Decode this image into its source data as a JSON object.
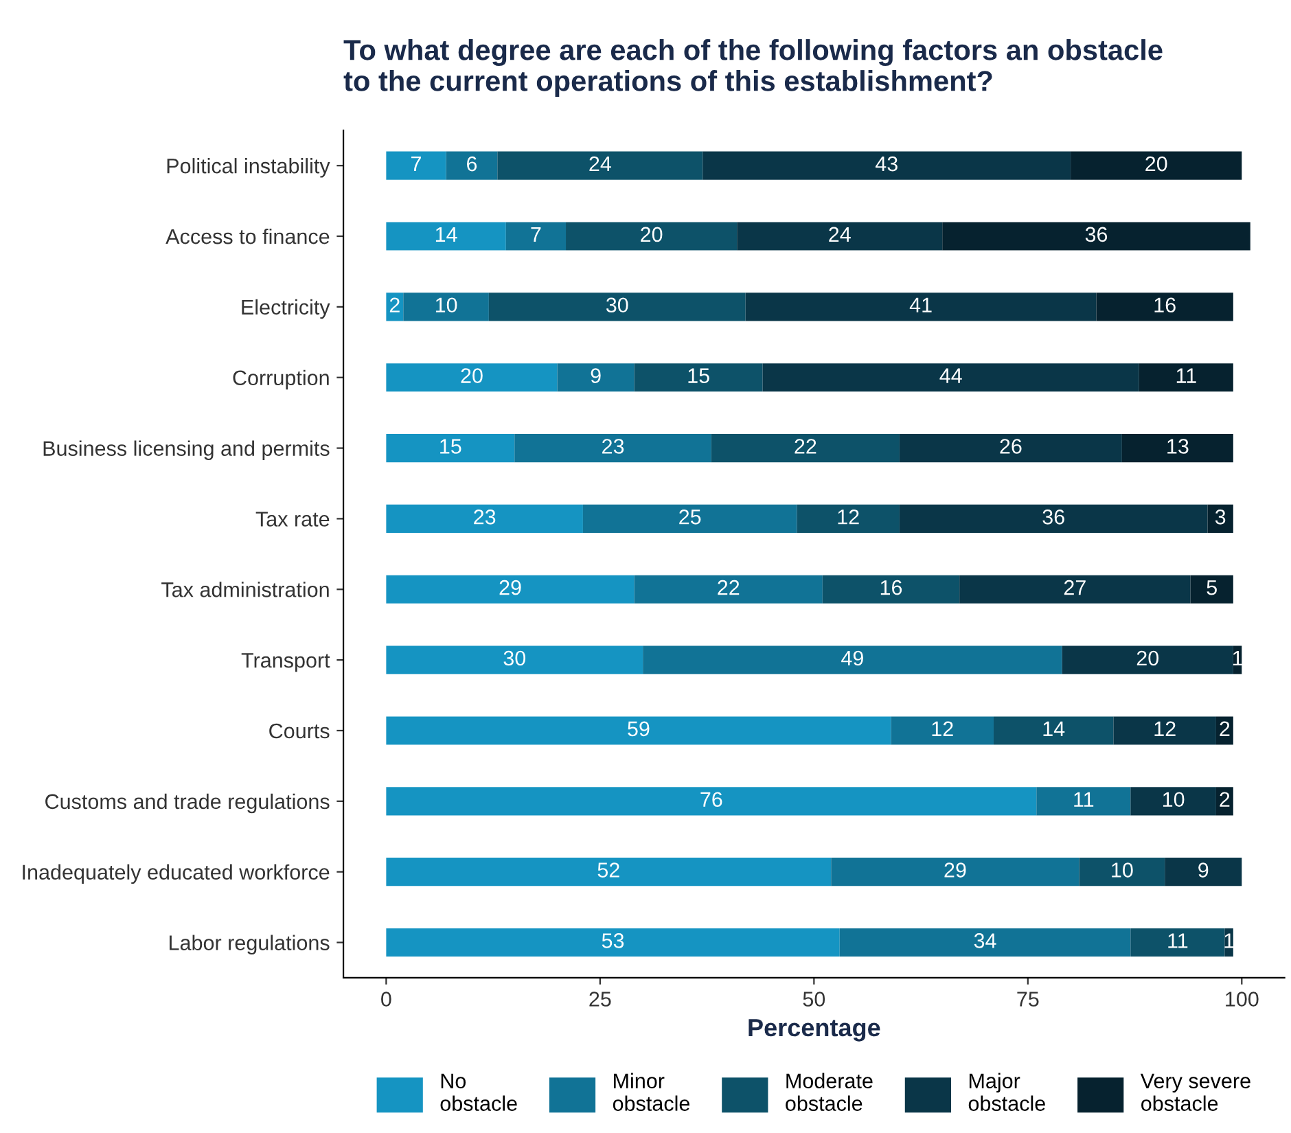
{
  "chart_data": {
    "type": "bar",
    "orientation": "horizontal",
    "stacked": true,
    "title": "To what degree are each of the following factors an obstacle\nto the current operations of this establishment?",
    "xlabel": "Percentage",
    "categories": [
      "Political instability",
      "Access to finance",
      "Electricity",
      "Corruption",
      "Business licensing and permits",
      "Tax rate",
      "Tax administration",
      "Transport",
      "Courts",
      "Customs and trade regulations",
      "Inadequately educated workforce",
      "Labor regulations"
    ],
    "series": [
      {
        "name": "No obstacle",
        "color": "#1594c2",
        "values": [
          7,
          14,
          2,
          20,
          15,
          23,
          29,
          30,
          59,
          76,
          52,
          53
        ]
      },
      {
        "name": "Minor obstacle",
        "color": "#117396",
        "values": [
          6,
          7,
          10,
          9,
          23,
          25,
          22,
          49,
          12,
          11,
          29,
          34
        ]
      },
      {
        "name": "Moderate obstacle",
        "color": "#0d5269",
        "values": [
          24,
          20,
          30,
          15,
          22,
          12,
          16,
          null,
          14,
          null,
          10,
          11
        ]
      },
      {
        "name": "Major obstacle",
        "color": "#0a3648",
        "values": [
          43,
          24,
          41,
          44,
          26,
          36,
          27,
          20,
          12,
          10,
          9,
          1
        ]
      },
      {
        "name": "Very severe obstacle",
        "color": "#06222f",
        "values": [
          20,
          36,
          16,
          11,
          13,
          3,
          5,
          1,
          2,
          2,
          null,
          null
        ]
      }
    ],
    "xlim": [
      -5,
      105
    ],
    "xticks": [
      0,
      25,
      50,
      75,
      100
    ],
    "data_labels": true,
    "grid": false,
    "legend": "bottom"
  }
}
